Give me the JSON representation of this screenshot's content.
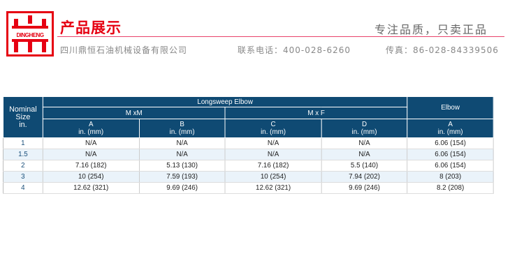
{
  "header": {
    "logo_text": "DINGHENG",
    "title": "产品展示",
    "slogan": "专注品质，只卖正品",
    "company": "四川鼎恒石油机械设备有限公司",
    "phone": "联系电话：400-028-6260",
    "fax": "传真：86-028-84339506",
    "brand_color": "#e60012"
  },
  "table": {
    "header_color": "#0f4a73",
    "nominal": [
      "Nominal",
      "Size",
      "in."
    ],
    "group": "Longsweep Elbow",
    "sub1": "M xM",
    "sub2": "M x F",
    "elbow": "Elbow",
    "cols": [
      {
        "l": "A",
        "u": "in. (mm)"
      },
      {
        "l": "B",
        "u": "in. (mm)"
      },
      {
        "l": "C",
        "u": "in. (mm)"
      },
      {
        "l": "D",
        "u": "in. (mm)"
      },
      {
        "l": "A",
        "u": "in. (mm)"
      }
    ],
    "rows": [
      [
        "1",
        "N/A",
        "N/A",
        "N/A",
        "N/A",
        "6.06 (154)"
      ],
      [
        "1.5",
        "N/A",
        "N/A",
        "N/A",
        "N/A",
        "6.06 (154)"
      ],
      [
        "2",
        "7.16 (182)",
        "5.13 (130)",
        "7.16 (182)",
        "5.5 (140)",
        "6.06 (154)"
      ],
      [
        "3",
        "10 (254)",
        "7.59 (193)",
        "10 (254)",
        "7.94 (202)",
        "8 (203)"
      ],
      [
        "4",
        "12.62 (321)",
        "9.69 (246)",
        "12.62 (321)",
        "9.69 (246)",
        "8.2 (208)"
      ]
    ]
  }
}
